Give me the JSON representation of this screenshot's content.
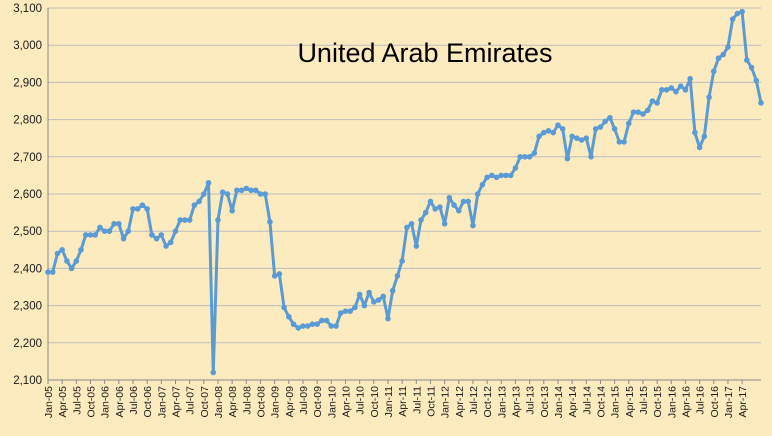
{
  "chart_data": {
    "type": "line",
    "title": "United Arab Emirates",
    "xlabel": "",
    "ylabel": "",
    "ylim": [
      2100,
      3100
    ],
    "yticks": [
      "2,100",
      "2,200",
      "2,300",
      "2,400",
      "2,500",
      "2,600",
      "2,700",
      "2,800",
      "2,900",
      "3,000",
      "3,100"
    ],
    "ytick_values": [
      2100,
      2200,
      2300,
      2400,
      2500,
      2600,
      2700,
      2800,
      2900,
      3000,
      3100
    ],
    "x_start": "Jan-05",
    "x_end": "Apr-17",
    "xticks": [
      "Jan-05",
      "Apr-05",
      "Jul-05",
      "Oct-05",
      "Jan-06",
      "Apr-06",
      "Jul-06",
      "Oct-06",
      "Jan-07",
      "Apr-07",
      "Jul-07",
      "Oct-07",
      "Jan-08",
      "Apr-08",
      "Jul-08",
      "Oct-08",
      "Jan-09",
      "Apr-09",
      "Jul-09",
      "Oct-09",
      "Jan-10",
      "Apr-10",
      "Jul-10",
      "Oct-10",
      "Jan-11",
      "Apr-11",
      "Jul-11",
      "Oct-11",
      "Jan-12",
      "Apr-12",
      "Jul-12",
      "Oct-12",
      "Jan-13",
      "Apr-13",
      "Jul-13",
      "Oct-13",
      "Jan-14",
      "Apr-14",
      "Jul-14",
      "Oct-14",
      "Jan-15",
      "Apr-15",
      "Jul-15",
      "Oct-15",
      "Jan-16",
      "Apr-16",
      "Jul-16",
      "Oct-16",
      "Jan-17",
      "Apr-17"
    ],
    "grid": true,
    "legend": "none",
    "series": [
      {
        "color": "#5B9BD5",
        "values": [
          2390,
          2390,
          2440,
          2450,
          2420,
          2400,
          2420,
          2450,
          2490,
          2490,
          2490,
          2510,
          2500,
          2500,
          2520,
          2520,
          2480,
          2500,
          2560,
          2560,
          2570,
          2560,
          2490,
          2480,
          2490,
          2460,
          2470,
          2500,
          2530,
          2530,
          2530,
          2570,
          2580,
          2600,
          2630,
          2120,
          2530,
          2605,
          2600,
          2555,
          2610,
          2610,
          2615,
          2610,
          2610,
          2600,
          2600,
          2525,
          2380,
          2385,
          2295,
          2270,
          2250,
          2240,
          2245,
          2245,
          2250,
          2250,
          2260,
          2260,
          2245,
          2245,
          2280,
          2285,
          2285,
          2295,
          2330,
          2300,
          2335,
          2310,
          2315,
          2325,
          2265,
          2340,
          2380,
          2420,
          2510,
          2520,
          2460,
          2530,
          2550,
          2580,
          2560,
          2565,
          2520,
          2590,
          2570,
          2555,
          2580,
          2580,
          2515,
          2600,
          2625,
          2645,
          2650,
          2645,
          2650,
          2650,
          2650,
          2670,
          2700,
          2700,
          2700,
          2710,
          2755,
          2765,
          2770,
          2765,
          2785,
          2775,
          2695,
          2755,
          2750,
          2745,
          2750,
          2700,
          2775,
          2780,
          2795,
          2805,
          2775,
          2740,
          2740,
          2790,
          2820,
          2820,
          2815,
          2825,
          2850,
          2845,
          2880,
          2880,
          2885,
          2875,
          2890,
          2880,
          2910,
          2765,
          2725,
          2755,
          2860,
          2930,
          2965,
          2975,
          2995,
          3070,
          3085,
          3090,
          2960,
          2940,
          2905,
          2845
        ]
      }
    ]
  }
}
